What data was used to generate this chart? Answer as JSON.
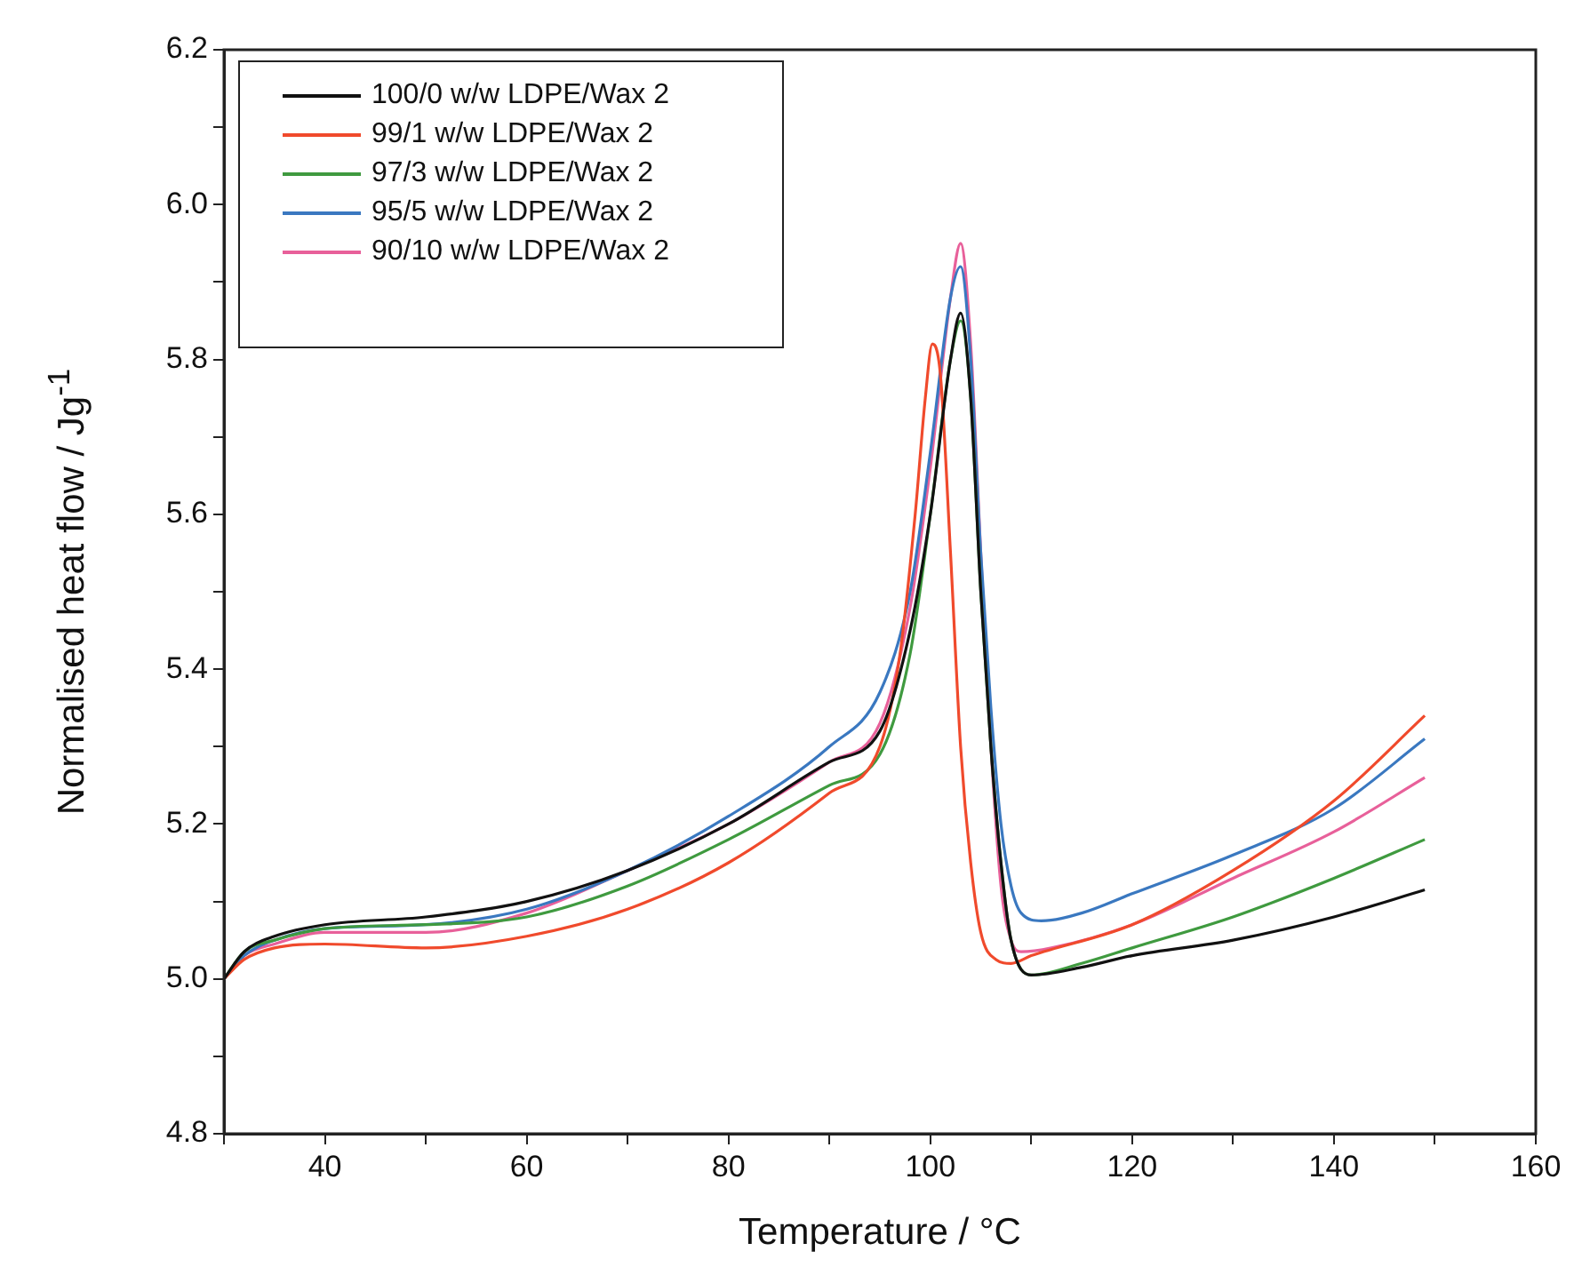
{
  "chart_data": {
    "type": "line",
    "xlabel": "Temperature / °C",
    "ylabel": "Normalised heat flow / Jg$^{-1}$",
    "xlim": [
      30,
      160
    ],
    "ylim": [
      4.8,
      6.2
    ],
    "xticks": [
      {
        "value": 30,
        "label": null
      },
      40,
      {
        "value": 50,
        "label": null
      },
      60,
      {
        "value": 70,
        "label": null
      },
      80,
      {
        "value": 90,
        "label": null
      },
      100,
      {
        "value": 110,
        "label": null
      },
      120,
      {
        "value": 130,
        "label": null
      },
      140,
      {
        "value": 150,
        "label": null
      },
      160
    ],
    "yticks": [
      4.8,
      {
        "value": 4.9,
        "label": null
      },
      {
        "value": 5,
        "label": "5.0"
      },
      {
        "value": 5.1,
        "label": null
      },
      5.2,
      {
        "value": 5.3,
        "label": null
      },
      5.4,
      {
        "value": 5.5,
        "label": null
      },
      5.6,
      {
        "value": 5.7,
        "label": null
      },
      5.8,
      {
        "value": 5.9,
        "label": null
      },
      {
        "value": 6,
        "label": "6.0"
      },
      {
        "value": 6.1,
        "label": null
      },
      6.2
    ],
    "legend": "top left",
    "grid": false,
    "marker": "none",
    "line_style": "solid",
    "series": [
      {
        "name": "100/0 w/w LDPE/Wax 2",
        "color": "#111111",
        "x": [
          30,
          32,
          35,
          40,
          50,
          60,
          70,
          80,
          90,
          95,
          98,
          100,
          102,
          103,
          104,
          105,
          106,
          107,
          108,
          110,
          115,
          120,
          130,
          140,
          149
        ],
        "values": [
          5.0,
          5.035,
          5.055,
          5.07,
          5.08,
          5.1,
          5.14,
          5.2,
          5.28,
          5.32,
          5.45,
          5.6,
          5.8,
          5.86,
          5.75,
          5.5,
          5.3,
          5.15,
          5.05,
          5.005,
          5.015,
          5.03,
          5.05,
          5.08,
          5.115
        ]
      },
      {
        "name": "99/1 w/w LDPE/Wax 2",
        "color": "#f04a2c",
        "x": [
          30,
          32,
          35,
          40,
          50,
          60,
          70,
          80,
          90,
          95,
          97,
          98.5,
          99.5,
          100.2,
          101,
          102,
          103,
          104,
          105,
          106.5,
          108,
          110,
          120,
          130,
          140,
          149
        ],
        "values": [
          5.0,
          5.025,
          5.04,
          5.045,
          5.04,
          5.055,
          5.09,
          5.15,
          5.24,
          5.3,
          5.42,
          5.6,
          5.75,
          5.82,
          5.78,
          5.55,
          5.3,
          5.15,
          5.06,
          5.025,
          5.02,
          5.03,
          5.07,
          5.14,
          5.23,
          5.34
        ]
      },
      {
        "name": "97/3 w/w LDPE/Wax 2",
        "color": "#3f9a3f",
        "x": [
          30,
          32,
          35,
          40,
          50,
          60,
          70,
          80,
          90,
          95,
          98,
          100,
          102,
          103,
          104,
          105,
          106,
          107,
          108,
          110,
          115,
          120,
          130,
          140,
          149
        ],
        "values": [
          5.0,
          5.035,
          5.05,
          5.065,
          5.07,
          5.08,
          5.12,
          5.18,
          5.25,
          5.29,
          5.42,
          5.6,
          5.8,
          5.85,
          5.75,
          5.5,
          5.3,
          5.15,
          5.05,
          5.005,
          5.02,
          5.04,
          5.08,
          5.13,
          5.18
        ]
      },
      {
        "name": "95/5 w/w LDPE/Wax 2",
        "color": "#3a78c0",
        "x": [
          30,
          32,
          35,
          40,
          50,
          60,
          70,
          80,
          90,
          95,
          98,
          100,
          102,
          103,
          104,
          105,
          106,
          107,
          108,
          109,
          111,
          115,
          120,
          130,
          140,
          149
        ],
        "values": [
          5.0,
          5.03,
          5.05,
          5.065,
          5.07,
          5.09,
          5.14,
          5.21,
          5.3,
          5.37,
          5.5,
          5.68,
          5.88,
          5.92,
          5.8,
          5.55,
          5.35,
          5.2,
          5.12,
          5.085,
          5.075,
          5.085,
          5.11,
          5.16,
          5.22,
          5.31
        ]
      },
      {
        "name": "90/10 w/w LDPE/Wax 2",
        "color": "#e8609a",
        "x": [
          30,
          32,
          35,
          40,
          50,
          60,
          70,
          80,
          90,
          95,
          98,
          100,
          102,
          103,
          104,
          105,
          106,
          107,
          108,
          109,
          112,
          120,
          130,
          140,
          149
        ],
        "values": [
          5.0,
          5.03,
          5.045,
          5.06,
          5.06,
          5.085,
          5.14,
          5.2,
          5.28,
          5.33,
          5.48,
          5.66,
          5.88,
          5.95,
          5.82,
          5.55,
          5.3,
          5.12,
          5.05,
          5.035,
          5.04,
          5.07,
          5.13,
          5.19,
          5.26
        ]
      }
    ]
  }
}
